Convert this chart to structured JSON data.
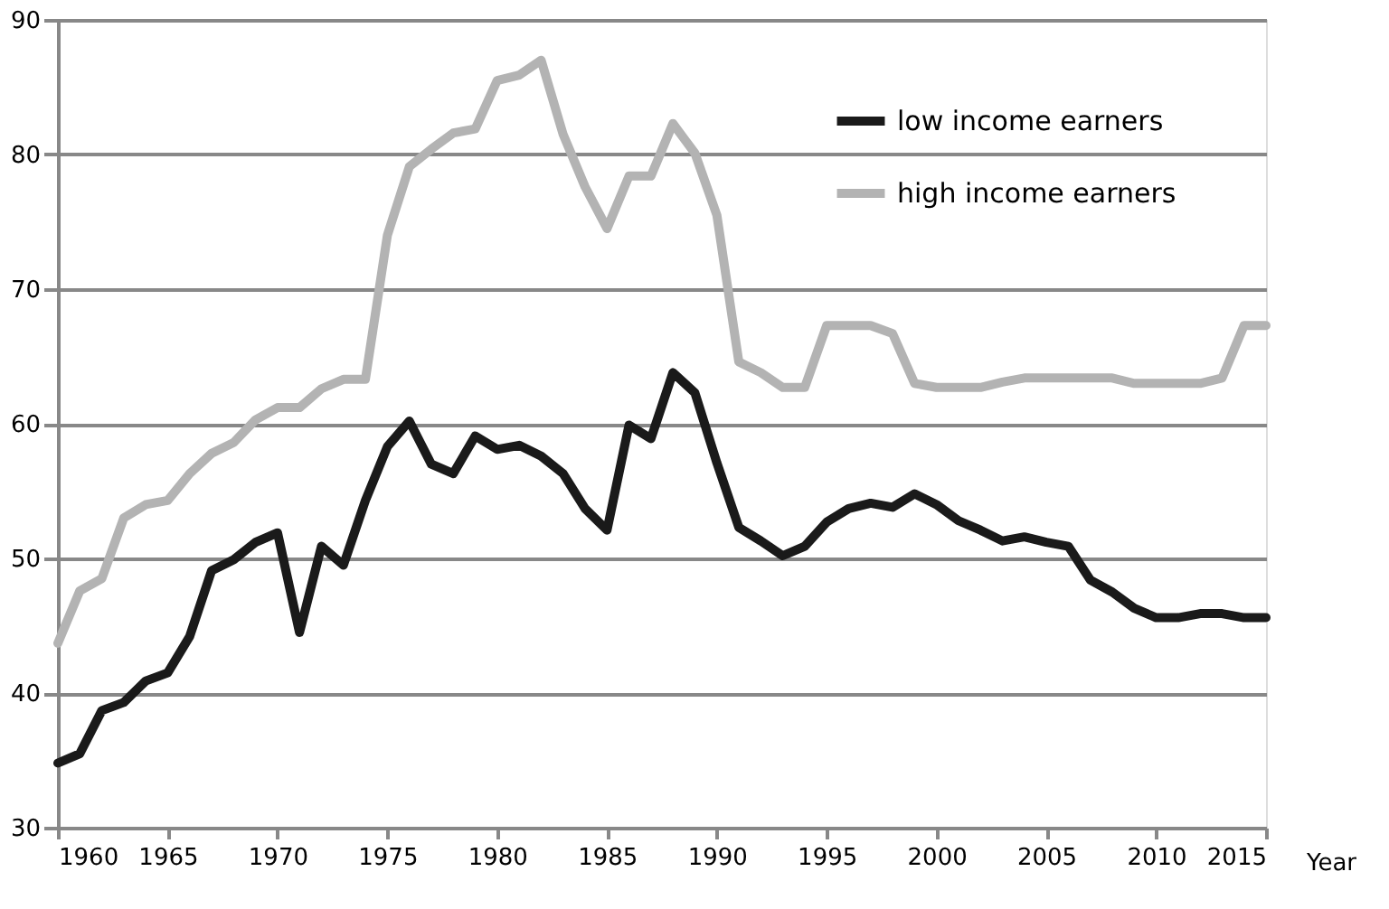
{
  "chart_data": {
    "type": "line",
    "xlabel": "Year",
    "x": [
      1960,
      1961,
      1962,
      1963,
      1964,
      1965,
      1966,
      1967,
      1968,
      1969,
      1970,
      1971,
      1972,
      1973,
      1974,
      1975,
      1976,
      1977,
      1978,
      1979,
      1980,
      1981,
      1982,
      1983,
      1984,
      1985,
      1986,
      1987,
      1988,
      1989,
      1990,
      1991,
      1992,
      1993,
      1994,
      1995,
      1996,
      1997,
      1998,
      1999,
      2000,
      2001,
      2002,
      2003,
      2004,
      2005,
      2006,
      2007,
      2008,
      2009,
      2010,
      2011,
      2012,
      2013,
      2014,
      2015
    ],
    "series": [
      {
        "name": "low income earners",
        "color": "#1a1a1a",
        "values": [
          34.8,
          35.5,
          38.7,
          39.3,
          40.9,
          41.5,
          44.2,
          49.1,
          49.9,
          51.2,
          51.9,
          44.5,
          50.9,
          49.5,
          54.3,
          58.3,
          60.2,
          57.0,
          56.3,
          59.1,
          58.1,
          58.4,
          57.6,
          56.3,
          53.7,
          52.1,
          59.9,
          58.9,
          63.8,
          62.3,
          57.1,
          52.3,
          51.3,
          50.2,
          50.9,
          52.7,
          53.7,
          54.1,
          53.8,
          54.8,
          54.0,
          52.8,
          52.1,
          51.3,
          51.6,
          51.2,
          50.9,
          48.4,
          47.5,
          46.3,
          45.6,
          45.6,
          45.9,
          45.9,
          45.6,
          45.6
        ]
      },
      {
        "name": "high income earners",
        "color": "#b3b3b3",
        "values": [
          43.7,
          47.6,
          48.5,
          53.0,
          54.0,
          54.3,
          56.3,
          57.8,
          58.6,
          60.3,
          61.2,
          61.2,
          62.6,
          63.3,
          63.3,
          74.0,
          79.1,
          80.4,
          81.6,
          81.9,
          85.5,
          85.9,
          87.0,
          81.5,
          77.6,
          74.5,
          78.4,
          78.4,
          82.3,
          80.1,
          75.5,
          64.6,
          63.8,
          62.7,
          62.7,
          67.3,
          67.3,
          67.3,
          66.7,
          63.0,
          62.7,
          62.7,
          62.7,
          63.1,
          63.4,
          63.4,
          63.4,
          63.4,
          63.4,
          63.0,
          63.0,
          63.0,
          63.0,
          63.4,
          67.3,
          67.3
        ]
      }
    ],
    "xlim": [
      1960,
      2015
    ],
    "xticks": [
      1960,
      1965,
      1970,
      1975,
      1980,
      1985,
      1990,
      1995,
      2000,
      2005,
      2010,
      2015
    ],
    "ylim": [
      30,
      90
    ],
    "yticks": [
      30,
      40,
      50,
      60,
      70,
      80,
      90
    ],
    "grid": "y",
    "legend": "top right",
    "marker": "none",
    "line_style": "solid"
  }
}
